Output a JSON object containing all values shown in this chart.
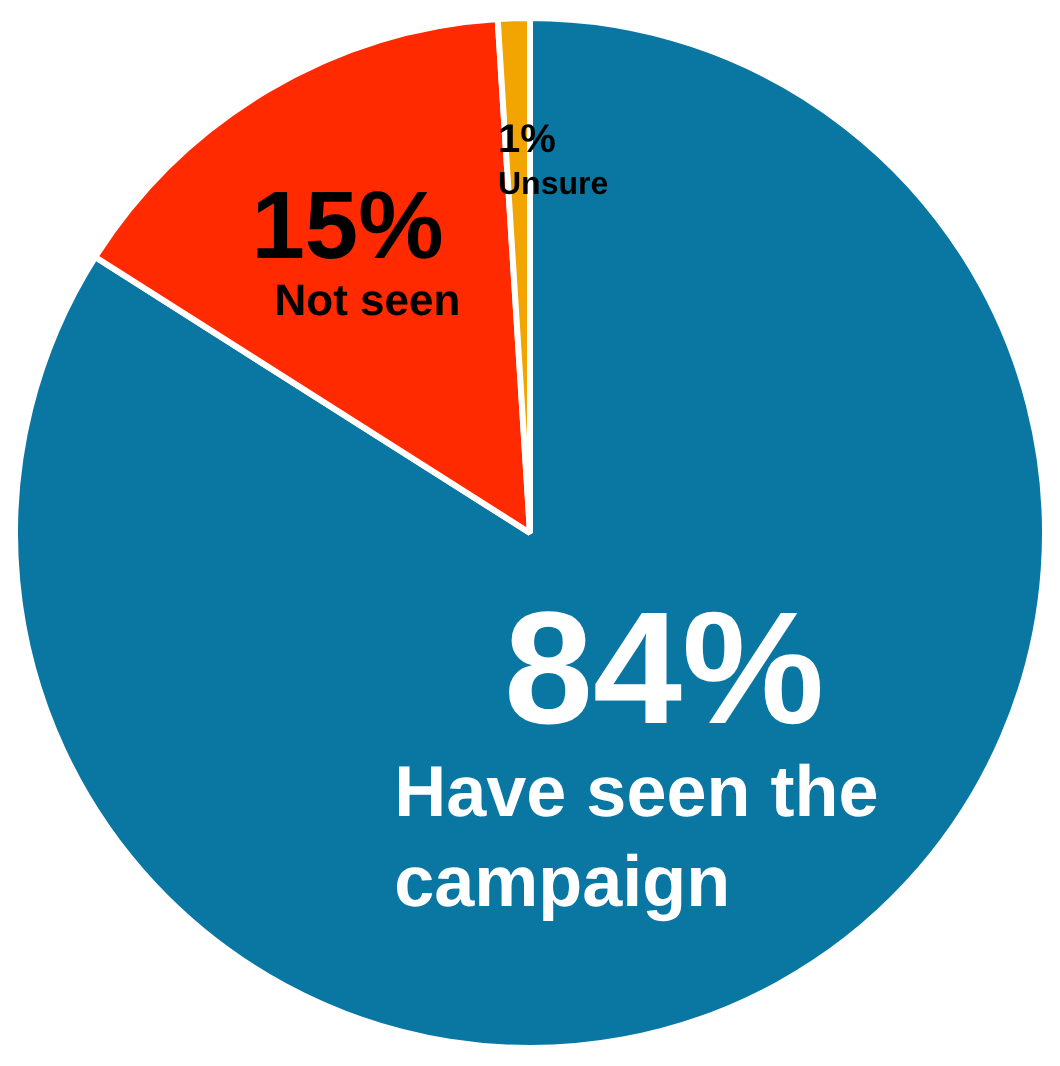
{
  "chart_data": {
    "type": "pie",
    "categories": [
      "Have seen the campaign",
      "Not seen",
      "Unsure"
    ],
    "values": [
      84,
      15,
      1
    ],
    "colors": [
      "#0a77a3",
      "#ff2a00",
      "#f2a400"
    ],
    "value_labels": [
      "84%",
      "15%",
      "1%"
    ],
    "legend": false
  }
}
